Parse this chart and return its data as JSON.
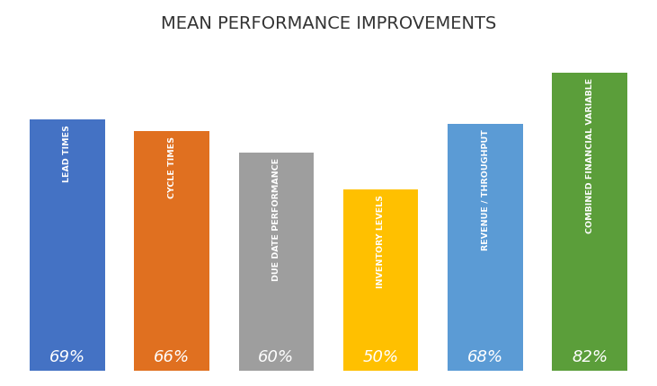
{
  "title": "MEAN PERFORMANCE IMPROVEMENTS",
  "categories": [
    "LEAD TIMES",
    "CYCLE TIMES",
    "DUE DATE PERFORMANCE",
    "INVENTORY LEVELS",
    "REVENUE / THROUGHPUT",
    "COMBINED FINANCIAL VARIABLE"
  ],
  "values": [
    69,
    66,
    60,
    50,
    68,
    82
  ],
  "bar_colors": [
    "#4472C4",
    "#E07020",
    "#9E9E9E",
    "#FFC000",
    "#5B9BD5",
    "#5B9E3A"
  ],
  "value_labels": [
    "69%",
    "66%",
    "60%",
    "50%",
    "68%",
    "82%"
  ],
  "label_color": "#ffffff",
  "title_fontsize": 14,
  "ylim": [
    0,
    90
  ],
  "background_color": "#ffffff",
  "bar_width": 0.72,
  "figsize": [
    7.31,
    4.3
  ],
  "dpi": 100
}
